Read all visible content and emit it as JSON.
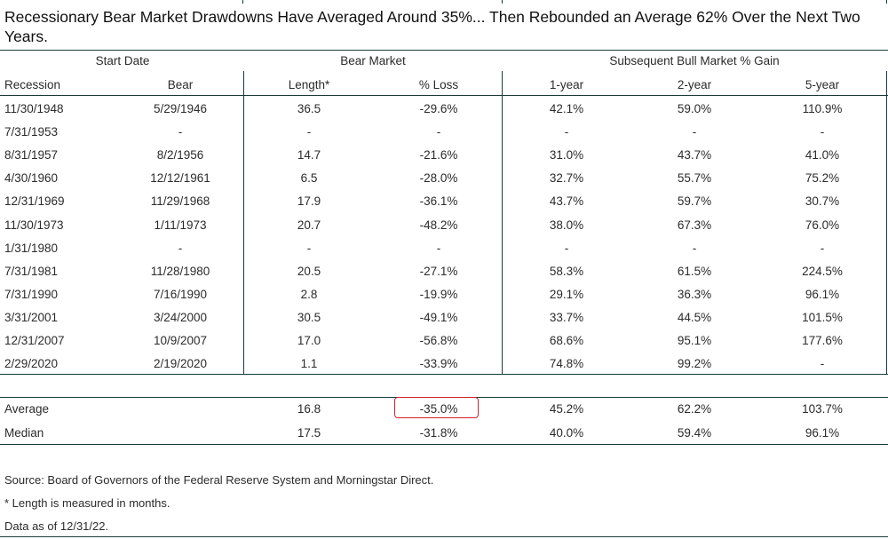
{
  "title": "Recessionary Bear Market Drawdowns Have Averaged Around 35%... Then Rebounded an Average 62% Over the Next Two Years.",
  "groups": {
    "start_date": "Start Date",
    "bear_market": "Bear Market",
    "bull": "Subsequent Bull Market % Gain"
  },
  "columns": [
    "Recession",
    "Bear",
    "Length*",
    "% Loss",
    "1-year",
    "2-year",
    "5-year"
  ],
  "rows": [
    [
      "11/30/1948",
      "5/29/1946",
      "36.5",
      "-29.6%",
      "42.1%",
      "59.0%",
      "110.9%"
    ],
    [
      "7/31/1953",
      "-",
      "-",
      "-",
      "-",
      "-",
      "-"
    ],
    [
      "8/31/1957",
      "8/2/1956",
      "14.7",
      "-21.6%",
      "31.0%",
      "43.7%",
      "41.0%"
    ],
    [
      "4/30/1960",
      "12/12/1961",
      "6.5",
      "-28.0%",
      "32.7%",
      "55.7%",
      "75.2%"
    ],
    [
      "12/31/1969",
      "11/29/1968",
      "17.9",
      "-36.1%",
      "43.7%",
      "59.7%",
      "30.7%"
    ],
    [
      "11/30/1973",
      "1/11/1973",
      "20.7",
      "-48.2%",
      "38.0%",
      "67.3%",
      "76.0%"
    ],
    [
      "1/31/1980",
      "-",
      "-",
      "-",
      "-",
      "-",
      "-"
    ],
    [
      "7/31/1981",
      "11/28/1980",
      "20.5",
      "-27.1%",
      "58.3%",
      "61.5%",
      "224.5%"
    ],
    [
      "7/31/1990",
      "7/16/1990",
      "2.8",
      "-19.9%",
      "29.1%",
      "36.3%",
      "96.1%"
    ],
    [
      "3/31/2001",
      "3/24/2000",
      "30.5",
      "-49.1%",
      "33.7%",
      "44.5%",
      "101.5%"
    ],
    [
      "12/31/2007",
      "10/9/2007",
      "17.0",
      "-56.8%",
      "68.6%",
      "95.1%",
      "177.6%"
    ],
    [
      "2/29/2020",
      "2/19/2020",
      "1.1",
      "-33.9%",
      "74.8%",
      "99.2%",
      "-"
    ]
  ],
  "summary": [
    [
      "Average",
      "",
      "16.8",
      "-35.0%",
      "45.2%",
      "62.2%",
      "103.7%"
    ],
    [
      "Median",
      "",
      "17.5",
      "-31.8%",
      "40.0%",
      "59.4%",
      "96.1%"
    ]
  ],
  "footnotes": {
    "source": "Source: Board of Governors of the Federal Reserve System and Morningstar Direct.",
    "length_note": "* Length is measured in months.",
    "as_of": "Data as of 12/31/22."
  },
  "colors": {
    "highlight": "#d31f2a",
    "rule": "#1a3a3a"
  }
}
